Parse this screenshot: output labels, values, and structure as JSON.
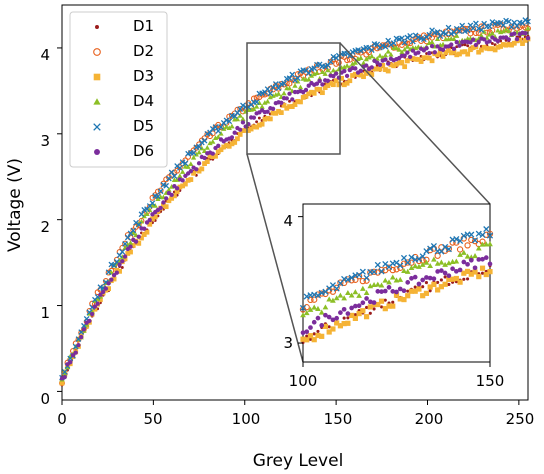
{
  "chart_data": {
    "type": "scatter",
    "xlabel": "Grey Level",
    "ylabel": "Voltage (V)",
    "xlim": [
      0,
      255
    ],
    "ylim": [
      -0.1,
      4.5
    ],
    "xticks": [
      "0",
      "50",
      "100",
      "150",
      "200",
      "250"
    ],
    "yticks": [
      "0",
      "1",
      "2",
      "3",
      "4"
    ],
    "legend_position": "upper-left",
    "series": [
      {
        "name": "D1",
        "marker": "dot",
        "color": "#9b1c1c",
        "vmax": 4.3,
        "k": 0.0119
      },
      {
        "name": "D2",
        "marker": "open-circle",
        "color": "#e8601c",
        "vmax": 4.4,
        "k": 0.0136
      },
      {
        "name": "D3",
        "marker": "square",
        "color": "#f5b335",
        "vmax": 4.25,
        "k": 0.0121
      },
      {
        "name": "D4",
        "marker": "triangle",
        "color": "#8cbf26",
        "vmax": 4.35,
        "k": 0.0131
      },
      {
        "name": "D5",
        "marker": "x",
        "color": "#1f77b4",
        "vmax": 4.45,
        "k": 0.0134
      },
      {
        "name": "D6",
        "marker": "dot-large",
        "color": "#7b2d9c",
        "vmax": 4.32,
        "k": 0.0124
      }
    ],
    "inset": {
      "xlim": [
        100,
        150
      ],
      "ylim": [
        2.85,
        4.1
      ],
      "xticks": [
        "100",
        "150"
      ],
      "yticks": [
        "3",
        "4"
      ],
      "highlight_box": {
        "x": [
          100,
          150
        ],
        "y": [
          2.85,
          4.15
        ]
      }
    }
  }
}
